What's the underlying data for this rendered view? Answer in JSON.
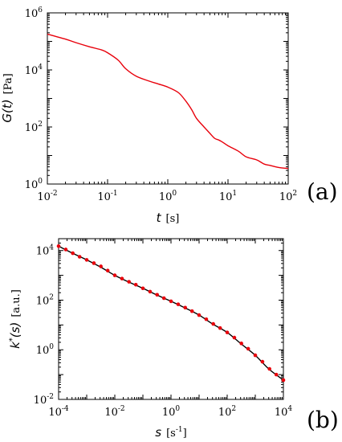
{
  "chart_data": [
    {
      "type": "line",
      "panel_label": "(a)",
      "xlabel": {
        "var": "t",
        "unit": "[s]"
      },
      "ylabel": {
        "var": "G(t)",
        "unit": "[Pa]"
      },
      "xscale": "log",
      "yscale": "log",
      "xlim": [
        0.01,
        100
      ],
      "ylim": [
        1,
        1000000
      ],
      "xticks": [
        {
          "base": "10",
          "exp": "-2"
        },
        {
          "base": "10",
          "exp": "-1"
        },
        {
          "base": "10",
          "exp": "0"
        },
        {
          "base": "10",
          "exp": "1"
        },
        {
          "base": "10",
          "exp": "2"
        }
      ],
      "yticks": [
        {
          "base": "10",
          "exp": "0"
        },
        {
          "base": "10",
          "exp": "2"
        },
        {
          "base": "10",
          "exp": "4"
        },
        {
          "base": "10",
          "exp": "6"
        }
      ],
      "grid": false,
      "series": [
        {
          "color": "#e8000b",
          "x": [
            0.01,
            0.02,
            0.03,
            0.05,
            0.08,
            0.1,
            0.15,
            0.2,
            0.3,
            0.5,
            0.7,
            1,
            1.5,
            2,
            2.5,
            3,
            4,
            5,
            6,
            7,
            8,
            10,
            15,
            20,
            30,
            40,
            50,
            70,
            100
          ],
          "y": [
            180000,
            120000,
            90000,
            65000,
            50000,
            40000,
            22000,
            11000,
            6000,
            4000,
            3200,
            2500,
            1600,
            800,
            400,
            200,
            100,
            60,
            40,
            35,
            30,
            22,
            14,
            9,
            7,
            5,
            4.5,
            3.8,
            3.5
          ]
        }
      ]
    },
    {
      "type": "line",
      "panel_label": "(b)",
      "xlabel": {
        "var": "s",
        "unit": "[s",
        "unit_exp": "-1",
        "unit_close": "]"
      },
      "ylabel": {
        "var": "k",
        "var_sup": "*",
        "var_tail": "(s)",
        "unit": "[a.u.]"
      },
      "xscale": "log",
      "yscale": "log",
      "xlim": [
        0.0001,
        10000
      ],
      "ylim": [
        0.01,
        30000
      ],
      "xticks": [
        {
          "base": "10",
          "exp": "-4"
        },
        {
          "base": "10",
          "exp": "-2"
        },
        {
          "base": "10",
          "exp": "0"
        },
        {
          "base": "10",
          "exp": "2"
        },
        {
          "base": "10",
          "exp": "4"
        }
      ],
      "yticks": [
        {
          "base": "10",
          "exp": "-2"
        },
        {
          "base": "10",
          "exp": "0"
        },
        {
          "base": "10",
          "exp": "2"
        },
        {
          "base": "10",
          "exp": "4"
        }
      ],
      "grid": false,
      "series": [
        {
          "style": "solid-line",
          "color": "#000000",
          "x": [
            0.0001,
            0.0003,
            0.001,
            0.003,
            0.01,
            0.03,
            0.1,
            0.3,
            1,
            3,
            10,
            30,
            100,
            300,
            1000,
            3000,
            10000
          ],
          "y": [
            15000,
            8000,
            4200,
            2200,
            1000,
            550,
            300,
            165,
            90,
            50,
            25,
            11,
            5,
            1.8,
            0.6,
            0.17,
            0.06
          ]
        },
        {
          "style": "markers",
          "color": "#e8000b",
          "x": [
            0.0001,
            0.00018,
            0.00032,
            0.00056,
            0.001,
            0.0018,
            0.0032,
            0.0056,
            0.01,
            0.018,
            0.032,
            0.056,
            0.1,
            0.18,
            0.32,
            0.56,
            1,
            1.8,
            3.2,
            5.6,
            10,
            18,
            32,
            56,
            100,
            180,
            320,
            560,
            1000,
            1800,
            3200,
            5600,
            10000
          ],
          "y": [
            15000,
            11000,
            7800,
            5600,
            4200,
            3100,
            2300,
            1550,
            1000,
            740,
            550,
            420,
            300,
            220,
            165,
            120,
            90,
            68,
            50,
            36,
            25,
            17,
            11,
            7.5,
            5,
            3.1,
            1.8,
            1.1,
            0.6,
            0.33,
            0.17,
            0.1,
            0.06
          ]
        }
      ]
    }
  ]
}
